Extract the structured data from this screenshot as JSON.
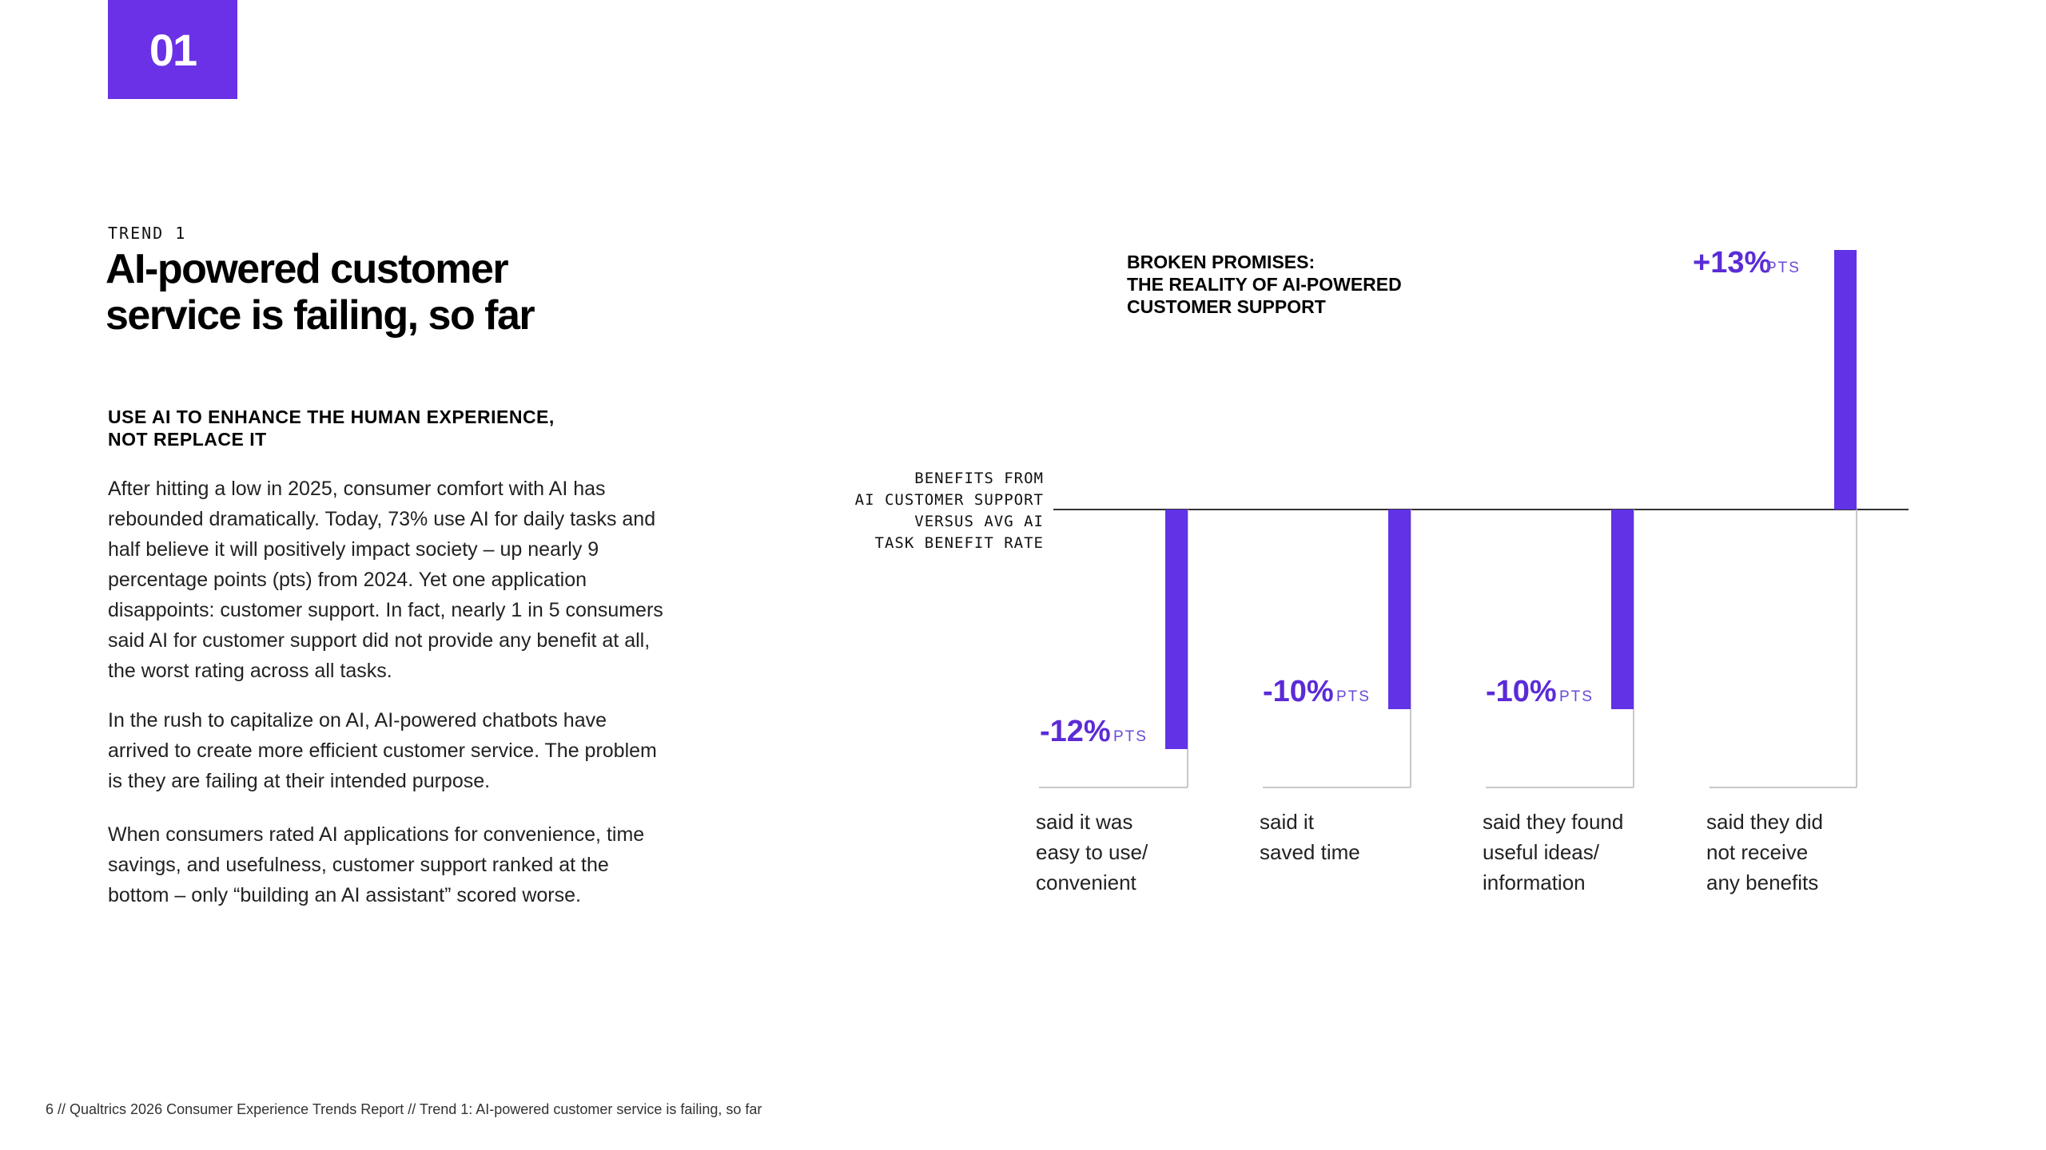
{
  "badge": "01",
  "trend_label": "TREND 1",
  "title_line1": "AI-powered customer",
  "title_line2": "service is failing, so far",
  "subhead_line1": "USE AI TO ENHANCE THE HUMAN EXPERIENCE,",
  "subhead_line2": "NOT REPLACE IT",
  "paragraph1": "After hitting a low in 2025, consumer comfort with AI has rebounded dramatically. Today, 73% use AI for daily tasks and half believe it will positively impact society – up nearly 9 percentage points (pts) from 2024. Yet one application disappoints: customer support. In fact, nearly 1 in 5 consumers said AI for customer support did not provide any benefit at all, the worst rating across all tasks.",
  "paragraph2": "In the rush to capitalize on AI, AI-powered chatbots have arrived to create more efficient customer service. The problem is they are failing at their intended purpose.",
  "paragraph3": "When consumers rated AI applications for convenience, time savings, and usefulness, customer support ranked at the bottom – only “building an AI assistant” scored worse.",
  "footer": "6  //  Qualtrics 2026 Consumer Experience Trends Report  //  Trend 1: AI-powered customer service is failing, so far",
  "chart_data": {
    "type": "bar",
    "title_lines": [
      "BROKEN PROMISES:",
      "THE REALITY OF AI-POWERED",
      "CUSTOMER SUPPORT"
    ],
    "baseline_label_lines": [
      "BENEFITS FROM",
      "AI CUSTOMER SUPPORT",
      "VERSUS AVG AI",
      "TASK BENEFIT RATE"
    ],
    "categories": [
      [
        "said it was",
        "easy to use/",
        "convenient"
      ],
      [
        "said it",
        "saved time"
      ],
      [
        "said they found",
        "useful ideas/",
        "information"
      ],
      [
        "said they did",
        "not receive",
        "any benefits"
      ]
    ],
    "values": [
      -12,
      -10,
      -10,
      13
    ],
    "value_labels": [
      "-12%",
      "-10%",
      "-10%",
      "+13%"
    ],
    "unit": "PTS",
    "bar_color": "#6132e6",
    "value_color": "#5b2bd6"
  }
}
